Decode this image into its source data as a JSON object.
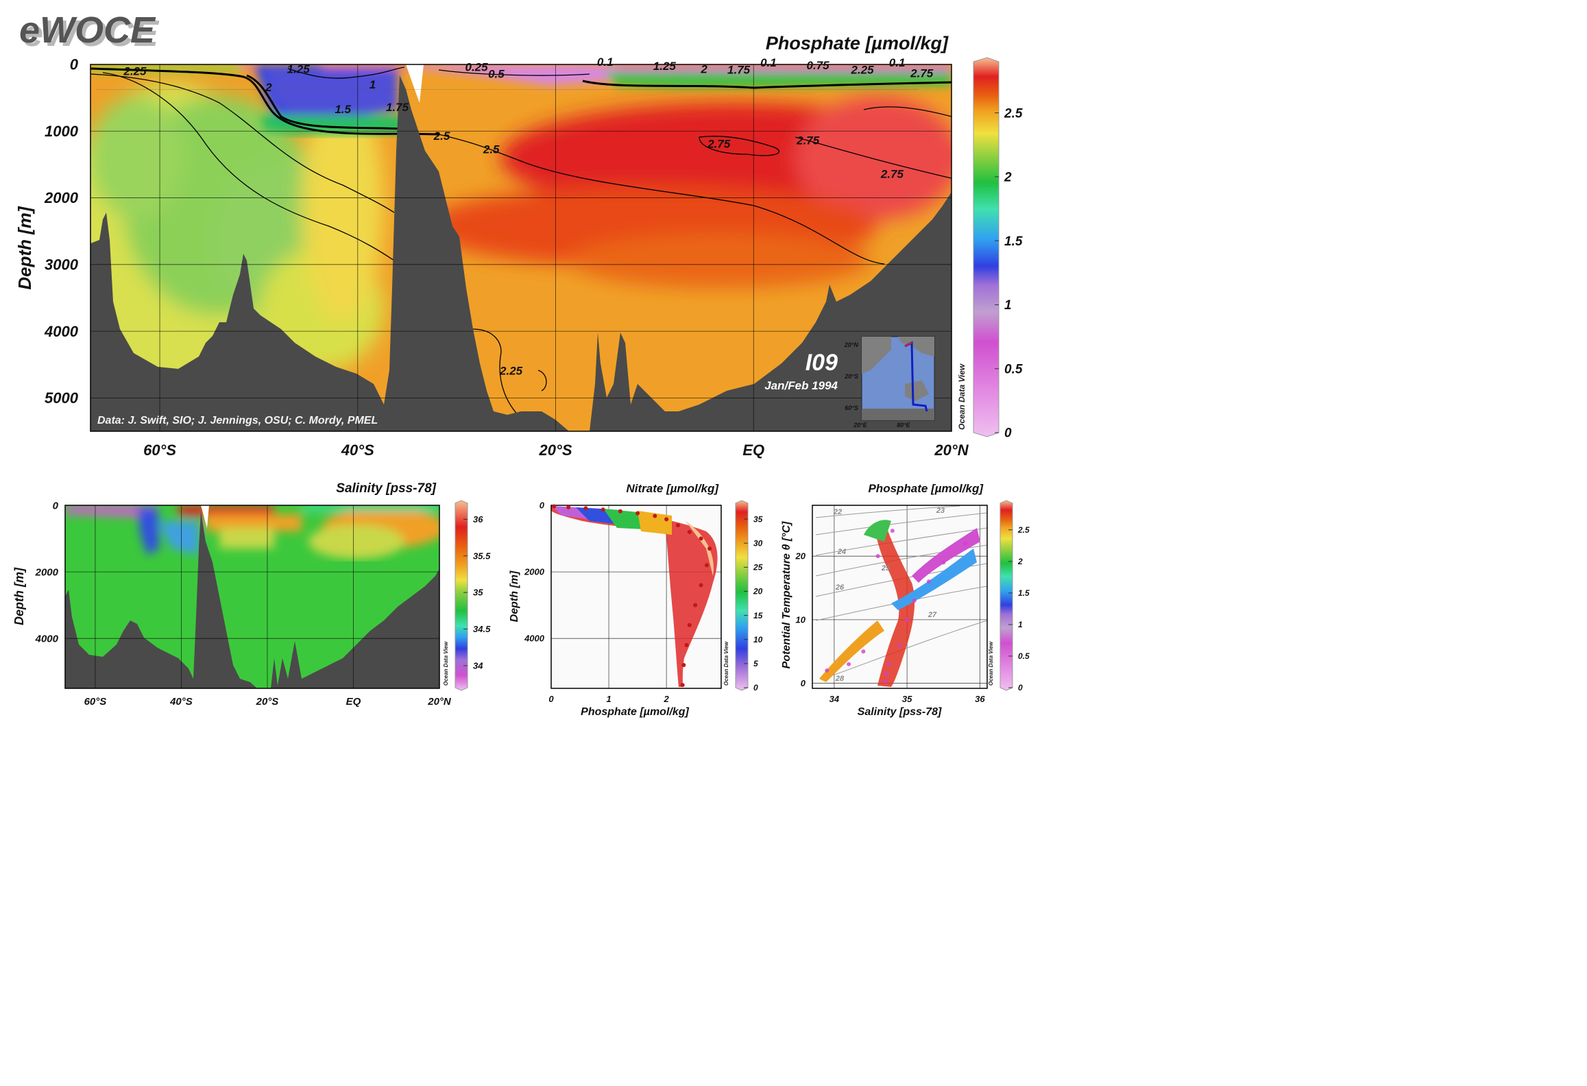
{
  "header": {
    "logo_text": "eWOCE"
  },
  "chart_data": [
    {
      "id": "main",
      "type": "heatmap",
      "title": "Phosphate [µmol/kg]",
      "ylabel": "Depth [m]",
      "xlabel": "",
      "xlim": [
        -67,
        20
      ],
      "ylim": [
        5500,
        0
      ],
      "x_ticks": [
        {
          "v": -60,
          "label": "60°S"
        },
        {
          "v": -40,
          "label": "40°S"
        },
        {
          "v": -20,
          "label": "20°S"
        },
        {
          "v": 0,
          "label": "EQ"
        },
        {
          "v": 20,
          "label": "20°N"
        }
      ],
      "y_ticks": [
        {
          "v": 0,
          "label": "0"
        },
        {
          "v": 1000,
          "label": "1000"
        },
        {
          "v": 2000,
          "label": "2000"
        },
        {
          "v": 3000,
          "label": "3000"
        },
        {
          "v": 4000,
          "label": "4000"
        },
        {
          "v": 5000,
          "label": "5000"
        }
      ],
      "grid": true,
      "colorbar": {
        "range": [
          0,
          2.9
        ],
        "ticks": [
          0,
          0.5,
          1,
          1.5,
          2,
          2.5
        ],
        "labels": [
          "0",
          "0.5",
          "1",
          "1.5",
          "2",
          "2.5"
        ]
      },
      "contour_labels": [
        {
          "text": "2.25",
          "x": -62.5,
          "y": 160
        },
        {
          "text": "1.25",
          "x": -46,
          "y": 130
        },
        {
          "text": "2",
          "x": -49,
          "y": 400
        },
        {
          "text": "1",
          "x": -38.5,
          "y": 360
        },
        {
          "text": "1.5",
          "x": -41.5,
          "y": 730
        },
        {
          "text": "1.75",
          "x": -36,
          "y": 700
        },
        {
          "text": "0.25",
          "x": -28,
          "y": 100
        },
        {
          "text": "0.5",
          "x": -26,
          "y": 200
        },
        {
          "text": "2.5",
          "x": -31.5,
          "y": 1130
        },
        {
          "text": "2.5",
          "x": -26.5,
          "y": 1330
        },
        {
          "text": "0.1",
          "x": -15,
          "y": 20
        },
        {
          "text": "1.25",
          "x": -9,
          "y": 80
        },
        {
          "text": "2",
          "x": -5,
          "y": 130
        },
        {
          "text": "1.75",
          "x": -1.5,
          "y": 140
        },
        {
          "text": "0.1",
          "x": 1.5,
          "y": 30
        },
        {
          "text": "0.75",
          "x": 6.5,
          "y": 70
        },
        {
          "text": "2.25",
          "x": 11,
          "y": 140
        },
        {
          "text": "0.1",
          "x": 14.5,
          "y": 30
        },
        {
          "text": "2.75",
          "x": 17,
          "y": 190
        },
        {
          "text": "2.75",
          "x": -3.5,
          "y": 1250
        },
        {
          "text": "2.75",
          "x": 5.5,
          "y": 1200
        },
        {
          "text": "2.75",
          "x": 14,
          "y": 1700
        },
        {
          "text": "2.25",
          "x": -24.5,
          "y": 4650
        }
      ],
      "annotations": {
        "section_id": "I09",
        "cruise_date": "Jan/Feb 1994",
        "data_credit": "Data: J. Swift, SIO; J. Jennings, OSU; C. Mordy, PMEL",
        "watermark": "Ocean Data View"
      },
      "inset_map": {
        "lat_ticks": [
          "20°N",
          "20°S",
          "60°S"
        ],
        "lon_ticks": [
          "20°E",
          "80°E"
        ]
      }
    },
    {
      "id": "salinity",
      "type": "heatmap",
      "title": "Salinity [pss-78]",
      "ylabel": "Depth [m]",
      "xlabel": "",
      "xlim": [
        -67,
        20
      ],
      "ylim": [
        5500,
        0
      ],
      "x_ticks": [
        {
          "v": -60,
          "label": "60°S"
        },
        {
          "v": -40,
          "label": "40°S"
        },
        {
          "v": -20,
          "label": "20°S"
        },
        {
          "v": 0,
          "label": "EQ"
        },
        {
          "v": 20,
          "label": "20°N"
        }
      ],
      "y_ticks": [
        {
          "v": 0,
          "label": "0"
        },
        {
          "v": 2000,
          "label": "2000"
        },
        {
          "v": 4000,
          "label": "4000"
        }
      ],
      "grid": true,
      "colorbar": {
        "range": [
          33.7,
          36.2
        ],
        "ticks": [
          34,
          34.5,
          35,
          35.5,
          36
        ],
        "labels": [
          "34",
          "34.5",
          "35",
          "35.5",
          "36"
        ]
      },
      "watermark": "Ocean Data View"
    },
    {
      "id": "nitrate-scatter",
      "type": "scatter",
      "title": "Nitrate [µmol/kg]",
      "xlabel": "Phosphate [µmol/kg]",
      "ylabel": "Depth [m]",
      "xlim": [
        0,
        2.95
      ],
      "ylim": [
        5500,
        0
      ],
      "x_ticks": [
        {
          "v": 0,
          "label": "0"
        },
        {
          "v": 1,
          "label": "1"
        },
        {
          "v": 2,
          "label": "2"
        }
      ],
      "y_ticks": [
        {
          "v": 0,
          "label": "0"
        },
        {
          "v": 2000,
          "label": "2000"
        },
        {
          "v": 4000,
          "label": "4000"
        }
      ],
      "grid": true,
      "colorbar": {
        "range": [
          0,
          38
        ],
        "ticks": [
          0,
          5,
          10,
          15,
          20,
          25,
          30,
          35
        ],
        "labels": [
          "0",
          "5",
          "10",
          "15",
          "20",
          "25",
          "30",
          "35"
        ]
      },
      "series": [
        {
          "values": [
            {
              "x": 0.05,
              "y": 30
            },
            {
              "x": 0.3,
              "y": 60
            },
            {
              "x": 0.6,
              "y": 90
            },
            {
              "x": 0.9,
              "y": 130
            },
            {
              "x": 1.2,
              "y": 180
            },
            {
              "x": 1.5,
              "y": 240
            },
            {
              "x": 1.8,
              "y": 320
            },
            {
              "x": 2.0,
              "y": 420
            },
            {
              "x": 2.2,
              "y": 600
            },
            {
              "x": 2.4,
              "y": 800
            },
            {
              "x": 2.6,
              "y": 1000
            },
            {
              "x": 2.75,
              "y": 1300
            },
            {
              "x": 2.7,
              "y": 1800
            },
            {
              "x": 2.6,
              "y": 2400
            },
            {
              "x": 2.5,
              "y": 3000
            },
            {
              "x": 2.4,
              "y": 3600
            },
            {
              "x": 2.35,
              "y": 4200
            },
            {
              "x": 2.3,
              "y": 4800
            },
            {
              "x": 2.28,
              "y": 5400
            }
          ]
        }
      ],
      "watermark": "Ocean Data View"
    },
    {
      "id": "ts-scatter",
      "type": "scatter",
      "title": "Phosphate [µmol/kg]",
      "xlabel": "Salinity [pss-78]",
      "ylabel": "Potential Temperature θ [°C]",
      "xlim": [
        33.7,
        36.1
      ],
      "ylim": [
        -0.8,
        28
      ],
      "x_ticks": [
        {
          "v": 34,
          "label": "34"
        },
        {
          "v": 35,
          "label": "35"
        },
        {
          "v": 36,
          "label": "36"
        }
      ],
      "y_ticks": [
        {
          "v": 0,
          "label": "0"
        },
        {
          "v": 10,
          "label": "10"
        },
        {
          "v": 20,
          "label": "20"
        }
      ],
      "grid": true,
      "isopycnal_labels": [
        "22",
        "23",
        "24",
        "25",
        "26",
        "27",
        "28"
      ],
      "colorbar": {
        "range": [
          0,
          2.9
        ],
        "ticks": [
          0,
          0.5,
          1,
          1.5,
          2,
          2.5
        ],
        "labels": [
          "0",
          "0.5",
          "1",
          "1.5",
          "2",
          "2.5"
        ]
      },
      "series": [
        {
          "values": [
            {
              "x": 34.7,
              "y": 0.3
            },
            {
              "x": 34.72,
              "y": 1.5
            },
            {
              "x": 34.75,
              "y": 3
            },
            {
              "x": 34.9,
              "y": 6
            },
            {
              "x": 35.0,
              "y": 10
            },
            {
              "x": 35.1,
              "y": 13
            },
            {
              "x": 35.3,
              "y": 16
            },
            {
              "x": 35.5,
              "y": 19
            },
            {
              "x": 35.8,
              "y": 22
            },
            {
              "x": 34.4,
              "y": 5
            },
            {
              "x": 34.2,
              "y": 3
            },
            {
              "x": 33.9,
              "y": 2
            },
            {
              "x": 34.6,
              "y": 20
            },
            {
              "x": 34.8,
              "y": 24
            }
          ]
        }
      ],
      "watermark": "Ocean Data View"
    }
  ]
}
